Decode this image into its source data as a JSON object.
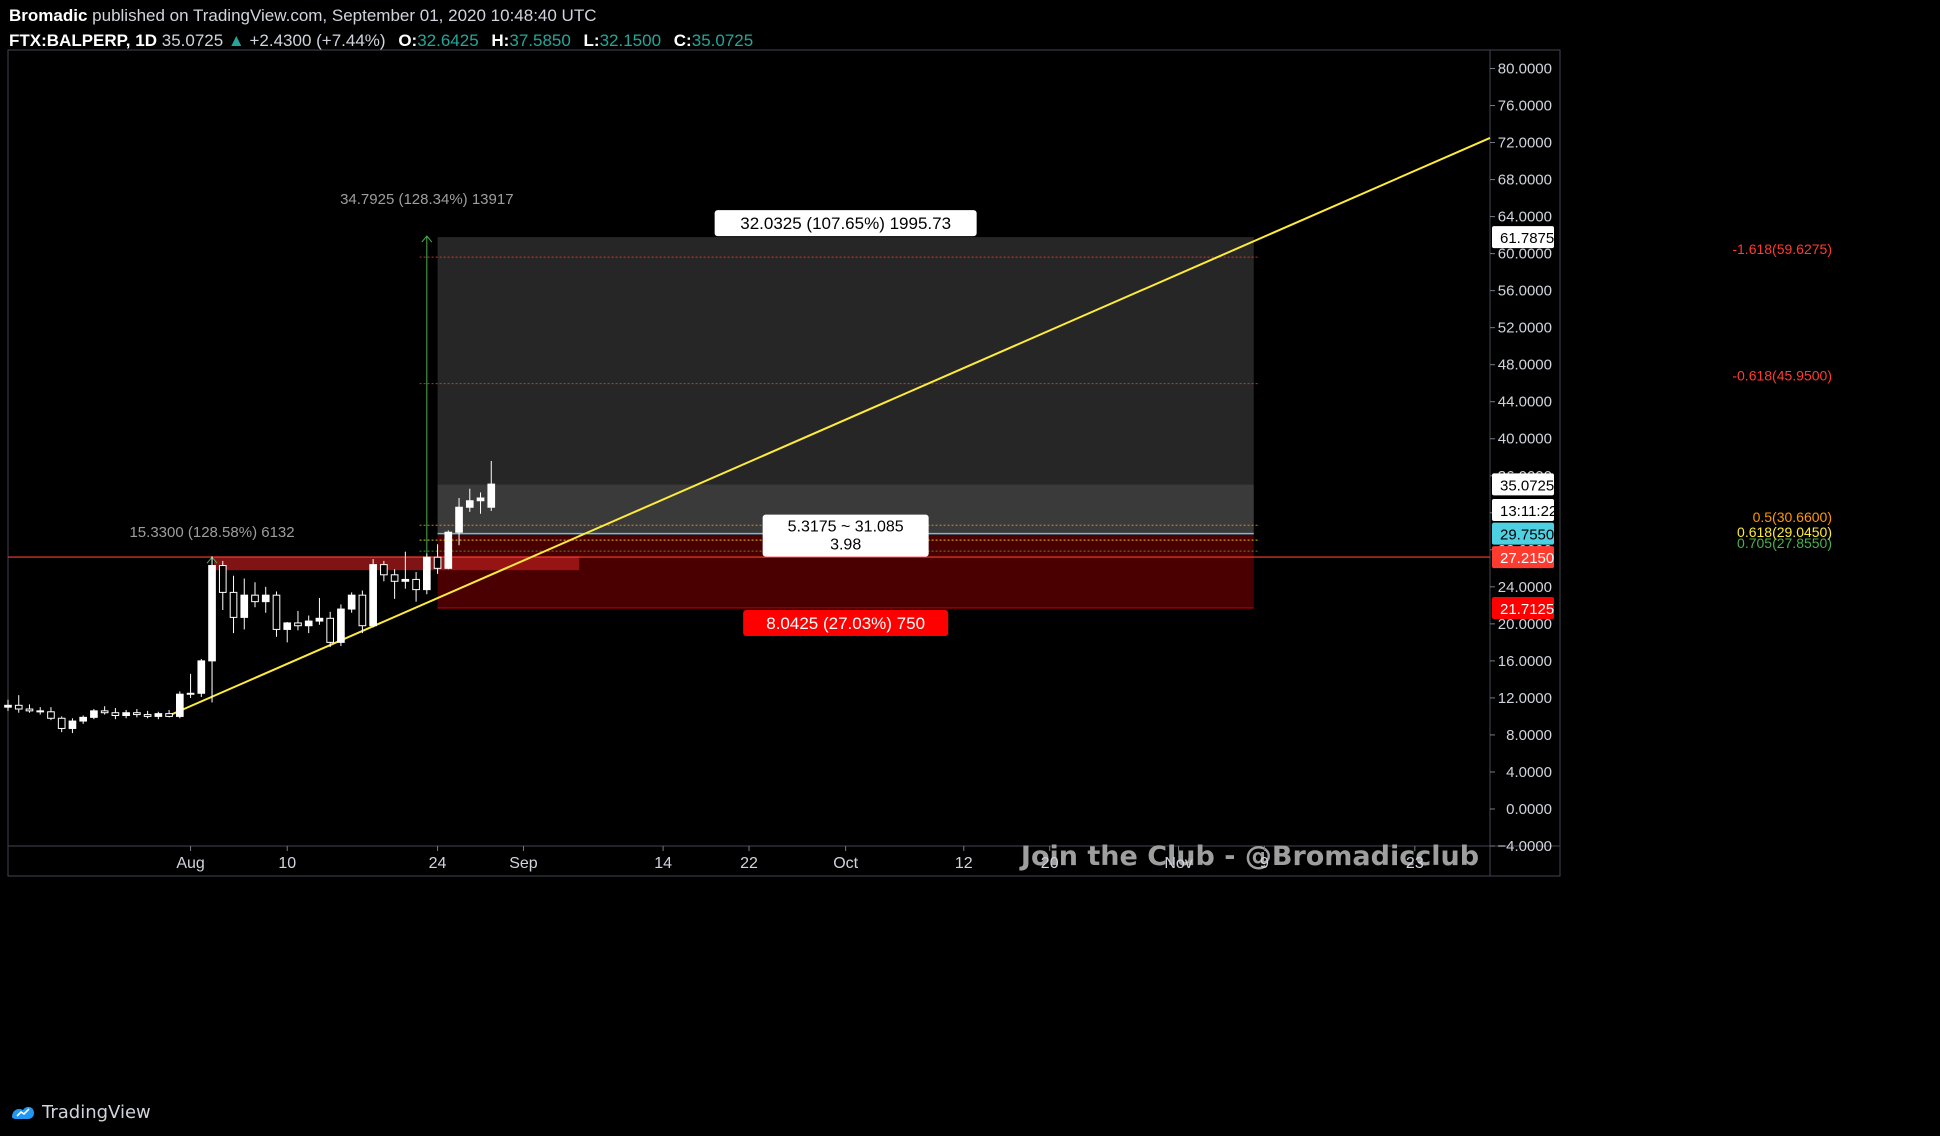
{
  "header": {
    "author": "Bromadic",
    "published": "published on TradingView.com, September 01, 2020 10:48:40 UTC",
    "symbol": "FTX:BALPERP, 1D",
    "last": "35.0725",
    "change": "+2.4300 (+7.44%)",
    "open_label": "O:",
    "open": "32.6425",
    "high_label": "H:",
    "high": "37.5850",
    "low_label": "L:",
    "low": "32.1500",
    "close_label": "C:",
    "close": "35.0725"
  },
  "footer": {
    "brand": "TradingView"
  },
  "watermark": "Join the Club - @Bromadicclub",
  "colors": {
    "background": "#000000",
    "bull": "#ffffff",
    "trendline": "#ffeb3b",
    "fib_red": "#ff3b30",
    "fib_orange": "#ff9800",
    "fib_yellow": "#ffeb3b",
    "fib_green": "#4caf50",
    "current_price": "#26a69a",
    "stop": "#ff0000",
    "entry": "#4dd0e1"
  },
  "chart_data": {
    "type": "candlestick",
    "ylim": [
      -4,
      82
    ],
    "yticks": [
      "80.0000",
      "76.0000",
      "72.0000",
      "68.0000",
      "64.0000",
      "60.0000",
      "56.0000",
      "52.0000",
      "48.0000",
      "44.0000",
      "40.0000",
      "36.0000",
      "32.0000",
      "28.0000",
      "24.0000",
      "20.0000",
      "16.0000",
      "12.0000",
      "8.0000",
      "4.0000",
      "0.0000",
      "−4.0000"
    ],
    "ytick_values": [
      80,
      76,
      72,
      68,
      64,
      60,
      56,
      52,
      48,
      44,
      40,
      36,
      32,
      28,
      24,
      20,
      16,
      12,
      8,
      4,
      0,
      -4
    ],
    "xlim": [
      "2020-07-15",
      "2020-11-30"
    ],
    "xticks": [
      {
        "date": "2020-08-01",
        "label": "Aug"
      },
      {
        "date": "2020-08-10",
        "label": "10"
      },
      {
        "date": "2020-08-24",
        "label": "24"
      },
      {
        "date": "2020-09-01",
        "label": "Sep"
      },
      {
        "date": "2020-09-14",
        "label": "14"
      },
      {
        "date": "2020-09-22",
        "label": "22"
      },
      {
        "date": "2020-10-01",
        "label": "Oct"
      },
      {
        "date": "2020-10-12",
        "label": "12"
      },
      {
        "date": "2020-10-20",
        "label": "20"
      },
      {
        "date": "2020-11-01",
        "label": "Nov"
      },
      {
        "date": "2020-11-09",
        "label": "9"
      },
      {
        "date": "2020-11-23",
        "label": "23"
      }
    ],
    "candles": [
      {
        "d": "2020-07-15",
        "o": 11.0,
        "h": 11.8,
        "l": 10.6,
        "c": 11.2
      },
      {
        "d": "2020-07-16",
        "o": 11.2,
        "h": 12.3,
        "l": 10.4,
        "c": 10.8
      },
      {
        "d": "2020-07-17",
        "o": 10.8,
        "h": 11.3,
        "l": 10.4,
        "c": 10.6
      },
      {
        "d": "2020-07-18",
        "o": 10.6,
        "h": 11.0,
        "l": 10.2,
        "c": 10.5
      },
      {
        "d": "2020-07-19",
        "o": 10.5,
        "h": 11.0,
        "l": 9.6,
        "c": 9.8
      },
      {
        "d": "2020-07-20",
        "o": 9.8,
        "h": 10.0,
        "l": 8.3,
        "c": 8.7
      },
      {
        "d": "2020-07-21",
        "o": 8.7,
        "h": 9.8,
        "l": 8.2,
        "c": 9.5
      },
      {
        "d": "2020-07-22",
        "o": 9.5,
        "h": 10.1,
        "l": 9.2,
        "c": 9.9
      },
      {
        "d": "2020-07-23",
        "o": 9.9,
        "h": 10.8,
        "l": 9.7,
        "c": 10.6
      },
      {
        "d": "2020-07-24",
        "o": 10.6,
        "h": 11.1,
        "l": 10.2,
        "c": 10.4
      },
      {
        "d": "2020-07-25",
        "o": 10.4,
        "h": 10.9,
        "l": 9.7,
        "c": 10.1
      },
      {
        "d": "2020-07-26",
        "o": 10.1,
        "h": 10.7,
        "l": 9.8,
        "c": 10.4
      },
      {
        "d": "2020-07-27",
        "o": 10.4,
        "h": 10.8,
        "l": 9.9,
        "c": 10.2
      },
      {
        "d": "2020-07-28",
        "o": 10.2,
        "h": 10.6,
        "l": 9.8,
        "c": 10.0
      },
      {
        "d": "2020-07-29",
        "o": 10.0,
        "h": 10.5,
        "l": 9.7,
        "c": 10.3
      },
      {
        "d": "2020-07-30",
        "o": 10.3,
        "h": 10.7,
        "l": 9.9,
        "c": 10.0
      },
      {
        "d": "2020-07-31",
        "o": 10.0,
        "h": 12.7,
        "l": 9.8,
        "c": 12.4
      },
      {
        "d": "2020-08-01",
        "o": 12.4,
        "h": 14.6,
        "l": 12.0,
        "c": 12.5
      },
      {
        "d": "2020-08-02",
        "o": 12.5,
        "h": 16.2,
        "l": 12.1,
        "c": 16.0
      },
      {
        "d": "2020-08-03",
        "o": 16.0,
        "h": 27.3,
        "l": 11.5,
        "c": 26.3
      },
      {
        "d": "2020-08-04",
        "o": 26.3,
        "h": 26.8,
        "l": 21.5,
        "c": 23.4
      },
      {
        "d": "2020-08-05",
        "o": 23.4,
        "h": 25.2,
        "l": 19.0,
        "c": 20.7
      },
      {
        "d": "2020-08-06",
        "o": 20.7,
        "h": 24.9,
        "l": 19.4,
        "c": 23.1
      },
      {
        "d": "2020-08-07",
        "o": 23.1,
        "h": 24.5,
        "l": 21.8,
        "c": 22.4
      },
      {
        "d": "2020-08-08",
        "o": 22.4,
        "h": 24.0,
        "l": 21.2,
        "c": 23.1
      },
      {
        "d": "2020-08-09",
        "o": 23.1,
        "h": 23.5,
        "l": 18.6,
        "c": 19.4
      },
      {
        "d": "2020-08-10",
        "o": 19.4,
        "h": 20.2,
        "l": 18.0,
        "c": 20.1
      },
      {
        "d": "2020-08-11",
        "o": 20.1,
        "h": 21.4,
        "l": 19.3,
        "c": 19.8
      },
      {
        "d": "2020-08-12",
        "o": 19.8,
        "h": 20.9,
        "l": 19.0,
        "c": 20.3
      },
      {
        "d": "2020-08-13",
        "o": 20.3,
        "h": 22.8,
        "l": 19.9,
        "c": 20.6
      },
      {
        "d": "2020-08-14",
        "o": 20.6,
        "h": 21.3,
        "l": 17.5,
        "c": 18.0
      },
      {
        "d": "2020-08-15",
        "o": 18.0,
        "h": 22.1,
        "l": 17.6,
        "c": 21.6
      },
      {
        "d": "2020-08-16",
        "o": 21.6,
        "h": 23.4,
        "l": 21.2,
        "c": 23.1
      },
      {
        "d": "2020-08-17",
        "o": 23.1,
        "h": 23.6,
        "l": 19.0,
        "c": 19.8
      },
      {
        "d": "2020-08-18",
        "o": 19.8,
        "h": 27.0,
        "l": 19.6,
        "c": 26.4
      },
      {
        "d": "2020-08-19",
        "o": 26.4,
        "h": 26.8,
        "l": 24.6,
        "c": 25.3
      },
      {
        "d": "2020-08-20",
        "o": 25.3,
        "h": 25.9,
        "l": 22.7,
        "c": 24.6
      },
      {
        "d": "2020-08-21",
        "o": 24.6,
        "h": 27.8,
        "l": 23.8,
        "c": 24.8
      },
      {
        "d": "2020-08-22",
        "o": 24.8,
        "h": 25.6,
        "l": 22.4,
        "c": 23.7
      },
      {
        "d": "2020-08-23",
        "o": 23.7,
        "h": 27.6,
        "l": 23.2,
        "c": 27.2
      },
      {
        "d": "2020-08-24",
        "o": 27.2,
        "h": 28.6,
        "l": 25.4,
        "c": 26.0
      },
      {
        "d": "2020-08-25",
        "o": 26.0,
        "h": 30.1,
        "l": 25.9,
        "c": 29.9
      },
      {
        "d": "2020-08-26",
        "o": 29.9,
        "h": 33.6,
        "l": 28.5,
        "c": 32.6
      },
      {
        "d": "2020-08-27",
        "o": 32.6,
        "h": 34.6,
        "l": 32.1,
        "c": 33.3
      },
      {
        "d": "2020-08-28",
        "o": 33.3,
        "h": 34.2,
        "l": 31.9,
        "c": 33.6
      },
      {
        "d": "2020-08-29",
        "o": 32.6,
        "h": 37.6,
        "l": 32.2,
        "c": 35.1
      }
    ],
    "trendline": {
      "from": {
        "d": "2020-07-30",
        "v": 10.1
      },
      "to": {
        "d": "2020-11-30",
        "v": 72.5
      }
    },
    "fib_levels": [
      {
        "label": "-1.618(59.6275)",
        "value": 59.6275,
        "color": "#ff3b30"
      },
      {
        "label": "-0.618(45.9500)",
        "value": 45.95,
        "color": "#ff3b30"
      },
      {
        "label": "0.5(30.6600)",
        "value": 30.66,
        "color": "#ff9800"
      },
      {
        "label": "0.618(29.0450)",
        "value": 29.045,
        "color": "#ffeb3b"
      },
      {
        "label": "0.705(27.8550)",
        "value": 27.855,
        "color": "#4caf50"
      }
    ],
    "horizontal_line": {
      "value": 27.215
    },
    "position": {
      "start": "2020-08-24",
      "end": "2020-11-08",
      "entry": 29.755,
      "target": 61.7875,
      "stop": 21.7125,
      "current": 35.0725,
      "target_label": "32.0325 (107.65%) 1995.73",
      "stop_label": "8.0425 (27.03%) 750",
      "center_label_1": "5.3175 ~ 31.085",
      "center_label_2": "3.98"
    },
    "price_tags": [
      {
        "label": "61.7875",
        "value": 61.7875,
        "bg": "#ffffff",
        "fg": "#000000"
      },
      {
        "label": "35.0725",
        "value": 35.0725,
        "bg": "#ffffff",
        "fg": "#000000"
      },
      {
        "label": "13:11:22",
        "value": 32.3,
        "bg": "#ffffff",
        "fg": "#000000"
      },
      {
        "label": "29.7550",
        "value": 29.755,
        "bg": "#4dd0e1",
        "fg": "#000000"
      },
      {
        "label": "27.2150",
        "value": 27.215,
        "bg": "#ff3b30",
        "fg": "#ffffff"
      },
      {
        "label": "21.7125",
        "value": 21.7125,
        "bg": "#ff0000",
        "fg": "#ffffff"
      }
    ],
    "measures": [
      {
        "label": "34.7925 (128.34%) 13917",
        "from": {
          "d": "2020-08-23",
          "v": 27.2
        },
        "to": {
          "d": "2020-08-23",
          "v": 61.9
        },
        "color": "#4caf50"
      },
      {
        "label": "15.3300 (128.58%) 6132",
        "from": {
          "d": "2020-08-03",
          "v": 11.9
        },
        "to": {
          "d": "2020-08-03",
          "v": 27.2
        },
        "color": "#4caf50"
      }
    ]
  }
}
